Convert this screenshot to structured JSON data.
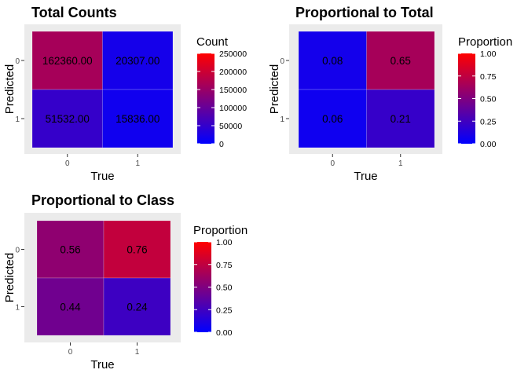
{
  "chart_data": [
    {
      "type": "heatmap",
      "title": "Total Counts",
      "xlabel": "True",
      "ylabel": "Predicted",
      "x_categories": [
        "0",
        "1"
      ],
      "y_categories": [
        "0",
        "1"
      ],
      "cells": [
        {
          "true": "0",
          "predicted": "0",
          "value": 162360,
          "label": "162360.00"
        },
        {
          "true": "1",
          "predicted": "0",
          "value": 20307,
          "label": "20307.00"
        },
        {
          "true": "0",
          "predicted": "1",
          "value": 51532,
          "label": "51532.00"
        },
        {
          "true": "1",
          "predicted": "1",
          "value": 15836,
          "label": "15836.00"
        }
      ],
      "legend": {
        "title": "Count",
        "range": [
          0,
          250000
        ],
        "ticks": [
          0,
          50000,
          100000,
          150000,
          200000,
          250000
        ],
        "tick_labels": [
          "0",
          "50000",
          "100000",
          "150000",
          "200000",
          "250000"
        ],
        "low_color": "#0000ff",
        "high_color": "#ff0000"
      }
    },
    {
      "type": "heatmap",
      "title": "Proportional to Total",
      "xlabel": "True",
      "ylabel": "Predicted",
      "x_categories": [
        "0",
        "1"
      ],
      "y_categories": [
        "0",
        "1"
      ],
      "cells": [
        {
          "true": "0",
          "predicted": "0",
          "value": 0.08,
          "label": "0.08"
        },
        {
          "true": "1",
          "predicted": "0",
          "value": 0.65,
          "label": "0.65"
        },
        {
          "true": "0",
          "predicted": "1",
          "value": 0.06,
          "label": "0.06"
        },
        {
          "true": "1",
          "predicted": "1",
          "value": 0.21,
          "label": "0.21"
        }
      ],
      "legend": {
        "title": "Proportion",
        "range": [
          0,
          1
        ],
        "ticks": [
          0,
          0.25,
          0.5,
          0.75,
          1
        ],
        "tick_labels": [
          "0.00",
          "0.25",
          "0.50",
          "0.75",
          "1.00"
        ],
        "low_color": "#0000ff",
        "high_color": "#ff0000"
      }
    },
    {
      "type": "heatmap",
      "title": "Proportional to Class",
      "xlabel": "True",
      "ylabel": "Predicted",
      "x_categories": [
        "0",
        "1"
      ],
      "y_categories": [
        "0",
        "1"
      ],
      "cells": [
        {
          "true": "0",
          "predicted": "0",
          "value": 0.56,
          "label": "0.56"
        },
        {
          "true": "1",
          "predicted": "0",
          "value": 0.76,
          "label": "0.76"
        },
        {
          "true": "0",
          "predicted": "1",
          "value": 0.44,
          "label": "0.44"
        },
        {
          "true": "1",
          "predicted": "1",
          "value": 0.24,
          "label": "0.24"
        }
      ],
      "legend": {
        "title": "Proportion",
        "range": [
          0,
          1
        ],
        "ticks": [
          0,
          0.25,
          0.5,
          0.75,
          1
        ],
        "tick_labels": [
          "0.00",
          "0.25",
          "0.50",
          "0.75",
          "1.00"
        ],
        "low_color": "#0000ff",
        "high_color": "#ff0000"
      }
    }
  ]
}
